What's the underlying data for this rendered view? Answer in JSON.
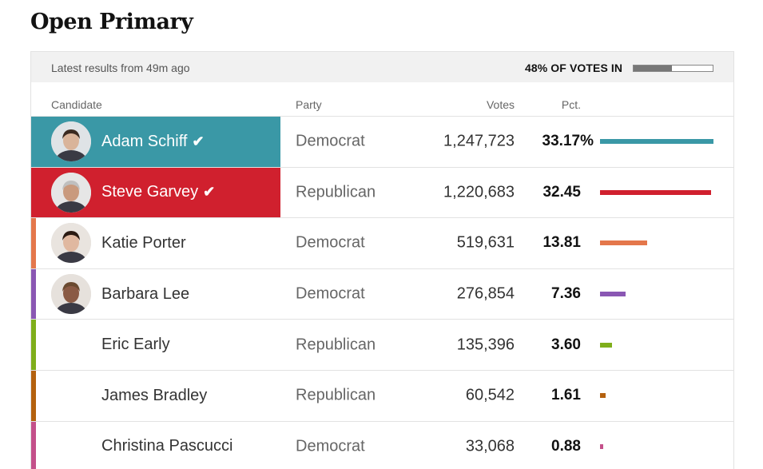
{
  "page": {
    "title": "Open Primary"
  },
  "status": {
    "latest": "Latest results from 49m ago",
    "votes_in_label": "48% OF VOTES IN",
    "votes_in_fraction": 0.48
  },
  "columns": {
    "candidate": "Candidate",
    "party": "Party",
    "votes": "Votes",
    "pct": "Pct."
  },
  "candidates": [
    {
      "name": "Adam Schiff",
      "party": "Democrat",
      "votes": "1,247,723",
      "pct": "33.17%",
      "pct_value": 33.17,
      "color": "#3a98a6",
      "winner": true,
      "photo": true,
      "check": "✔"
    },
    {
      "name": "Steve Garvey",
      "party": "Republican",
      "votes": "1,220,683",
      "pct": "32.45",
      "pct_value": 32.45,
      "color": "#d0202e",
      "winner": true,
      "photo": true,
      "check": "✔"
    },
    {
      "name": "Katie Porter",
      "party": "Democrat",
      "votes": "519,631",
      "pct": "13.81",
      "pct_value": 13.81,
      "color": "#e4774b",
      "winner": false,
      "photo": true
    },
    {
      "name": "Barbara Lee",
      "party": "Democrat",
      "votes": "276,854",
      "pct": "7.36",
      "pct_value": 7.36,
      "color": "#8a57b3",
      "winner": false,
      "photo": true
    },
    {
      "name": "Eric Early",
      "party": "Republican",
      "votes": "135,396",
      "pct": "3.60",
      "pct_value": 3.6,
      "color": "#7fae1b",
      "winner": false,
      "photo": false
    },
    {
      "name": "James Bradley",
      "party": "Republican",
      "votes": "60,542",
      "pct": "1.61",
      "pct_value": 1.61,
      "color": "#b4610e",
      "winner": false,
      "photo": false
    },
    {
      "name": "Christina Pascucci",
      "party": "Democrat",
      "votes": "33,068",
      "pct": "0.88",
      "pct_value": 0.88,
      "color": "#c4508a",
      "winner": false,
      "photo": false
    }
  ]
}
